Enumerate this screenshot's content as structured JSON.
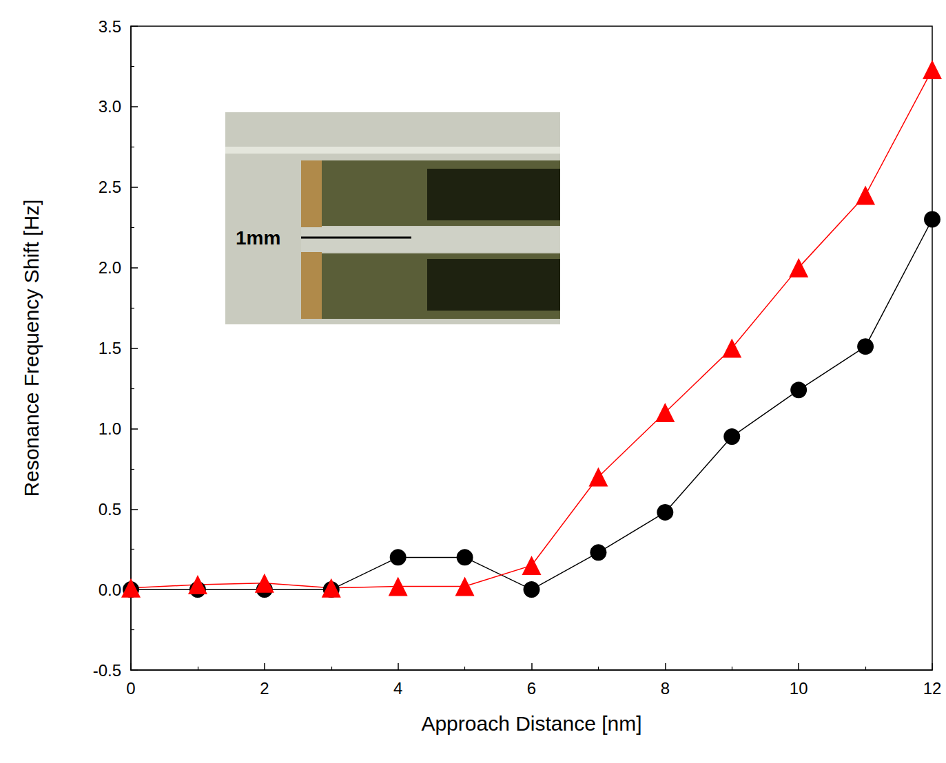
{
  "chart_data": {
    "type": "line",
    "x_label": "Approach Distance [nm]",
    "y_label": "Resonance Frequency Shift [Hz]",
    "annotations": [
      "1mm"
    ],
    "x": [
      0,
      1,
      2,
      3,
      4,
      5,
      6,
      7,
      8,
      9,
      10,
      11,
      12
    ],
    "series": [
      {
        "color": "#000000",
        "marker": "circle",
        "line_style": "solid",
        "values": [
          0,
          0,
          0,
          0,
          0.2,
          0.2,
          0,
          0.23,
          0.48,
          0.95,
          1.24,
          1.51,
          2.3
        ]
      },
      {
        "color": "#ff0000",
        "marker": "triangle",
        "line_style": "solid",
        "values": [
          0.01,
          0.03,
          0.04,
          0.01,
          0.02,
          0.02,
          0.15,
          0.7,
          1.1,
          1.5,
          2.0,
          2.45,
          3.23
        ]
      }
    ],
    "xlim": [
      0,
      12
    ],
    "xticks": [
      0,
      2,
      4,
      6,
      8,
      10,
      12
    ],
    "ylim": [
      -0.5,
      3.5
    ],
    "yticks": [
      -0.5,
      {
        "value": 0,
        "label": "0.0"
      },
      0.5,
      {
        "value": 1,
        "label": "1.0"
      },
      1.5,
      {
        "value": 2,
        "label": "2.0"
      },
      2.5,
      {
        "value": 3,
        "label": "3.0"
      },
      3.5
    ],
    "grid": false
  }
}
